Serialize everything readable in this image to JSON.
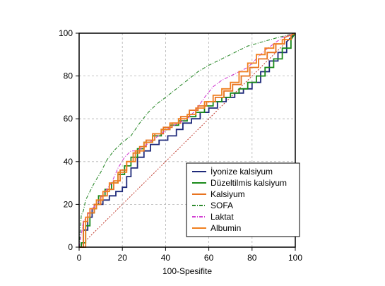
{
  "chart_data": {
    "type": "line",
    "title": "",
    "xlabel": "100-Spesifite",
    "ylabel": "",
    "xlim": [
      0,
      100
    ],
    "ylim": [
      0,
      100
    ],
    "x_ticks": [
      "0",
      "20",
      "40",
      "60",
      "80",
      "100"
    ],
    "y_ticks": [
      "0",
      "20",
      "40",
      "60",
      "80",
      "100"
    ],
    "grid": true,
    "legend_position": "bottom-right",
    "reference_line": {
      "x": [
        0,
        100
      ],
      "y": [
        0,
        100
      ],
      "color": "#c0392b"
    },
    "series": [
      {
        "name": "İyonize kalsiyum",
        "color": "#1f2a7a",
        "dash": "solid",
        "x": [
          0,
          2,
          2,
          4,
          4,
          6,
          6,
          8,
          8,
          11,
          11,
          14,
          14,
          17,
          17,
          20,
          20,
          22,
          22,
          24,
          24,
          27,
          27,
          30,
          30,
          33,
          33,
          37,
          37,
          41,
          41,
          45,
          45,
          48,
          48,
          52,
          52,
          56,
          56,
          60,
          60,
          64,
          64,
          68,
          68,
          72,
          72,
          76,
          76,
          80,
          80,
          84,
          84,
          88,
          88,
          92,
          92,
          96,
          96,
          100
        ],
        "y": [
          0,
          0,
          8,
          8,
          14,
          14,
          18,
          18,
          20,
          20,
          22,
          22,
          24,
          24,
          26,
          26,
          28,
          28,
          33,
          33,
          37,
          37,
          42,
          42,
          45,
          45,
          48,
          48,
          50,
          50,
          52,
          52,
          55,
          55,
          58,
          58,
          60,
          60,
          63,
          63,
          65,
          65,
          68,
          68,
          70,
          70,
          72,
          72,
          74,
          74,
          77,
          77,
          82,
          82,
          87,
          87,
          91,
          91,
          96,
          100
        ]
      },
      {
        "name": "Düzeltilmis kalsiyum",
        "color": "#1a8a1a",
        "dash": "solid",
        "x": [
          0,
          1,
          1,
          3,
          3,
          5,
          5,
          7,
          7,
          9,
          9,
          12,
          12,
          15,
          15,
          18,
          18,
          21,
          21,
          24,
          24,
          27,
          27,
          30,
          30,
          34,
          34,
          38,
          38,
          42,
          42,
          46,
          46,
          50,
          50,
          54,
          54,
          58,
          58,
          62,
          62,
          66,
          66,
          70,
          70,
          74,
          74,
          78,
          78,
          82,
          82,
          86,
          86,
          90,
          90,
          94,
          94,
          98,
          98,
          100
        ],
        "y": [
          0,
          0,
          2,
          2,
          10,
          10,
          16,
          16,
          20,
          20,
          24,
          24,
          27,
          27,
          30,
          30,
          34,
          34,
          38,
          38,
          42,
          42,
          46,
          46,
          49,
          49,
          52,
          52,
          55,
          55,
          57,
          57,
          59,
          59,
          61,
          61,
          63,
          63,
          66,
          66,
          68,
          68,
          70,
          70,
          72,
          72,
          74,
          74,
          77,
          77,
          80,
          80,
          84,
          84,
          88,
          88,
          93,
          93,
          97,
          100
        ]
      },
      {
        "name": "Kalsiyum",
        "color": "#e8731f",
        "dash": "solid",
        "x": [
          0,
          2,
          2,
          4,
          4,
          7,
          7,
          10,
          10,
          13,
          13,
          16,
          16,
          19,
          19,
          22,
          22,
          25,
          25,
          28,
          28,
          31,
          31,
          35,
          35,
          39,
          39,
          43,
          43,
          47,
          47,
          51,
          51,
          55,
          55,
          59,
          59,
          63,
          63,
          67,
          67,
          71,
          71,
          75,
          75,
          79,
          79,
          83,
          83,
          87,
          87,
          91,
          91,
          95,
          95,
          100
        ],
        "y": [
          0,
          0,
          12,
          12,
          16,
          16,
          20,
          20,
          24,
          24,
          27,
          27,
          31,
          31,
          36,
          36,
          40,
          40,
          44,
          44,
          47,
          47,
          50,
          50,
          53,
          53,
          56,
          56,
          58,
          58,
          61,
          61,
          64,
          64,
          66,
          66,
          68,
          68,
          70,
          70,
          73,
          73,
          76,
          76,
          80,
          80,
          84,
          84,
          88,
          88,
          91,
          91,
          95,
          95,
          98,
          100
        ]
      },
      {
        "name": "SOFA",
        "color": "#2e8b2e",
        "dash": "dashdot",
        "x": [
          0,
          1,
          2,
          3,
          5,
          7,
          10,
          13,
          16,
          20,
          24,
          28,
          32,
          36,
          40,
          45,
          50,
          55,
          60,
          66,
          72,
          78,
          85,
          92,
          100
        ],
        "y": [
          0,
          15,
          17,
          22,
          26,
          30,
          35,
          41,
          45,
          49,
          52,
          58,
          63,
          67,
          70,
          74,
          78,
          82,
          85,
          88,
          91,
          94,
          96,
          98,
          100
        ]
      },
      {
        "name": "Laktat",
        "color": "#d23fd2",
        "dash": "dashdot",
        "x": [
          0,
          2,
          4,
          6,
          9,
          12,
          15,
          18,
          21,
          24,
          27,
          30,
          34,
          38,
          42,
          46,
          50,
          54,
          58,
          62,
          66,
          70,
          74,
          78,
          82,
          86,
          90,
          94,
          100
        ],
        "y": [
          0,
          12,
          15,
          18,
          21,
          26,
          30,
          37,
          42,
          45,
          45,
          47,
          50,
          53,
          56,
          58,
          60,
          64,
          70,
          75,
          78,
          80,
          82,
          84,
          88,
          92,
          95,
          98,
          100
        ]
      },
      {
        "name": "Albumin",
        "color": "#f07f1f",
        "dash": "solid",
        "x": [
          0,
          3,
          3,
          5,
          5,
          8,
          8,
          11,
          11,
          14,
          14,
          18,
          18,
          22,
          22,
          26,
          26,
          30,
          30,
          34,
          34,
          38,
          38,
          42,
          42,
          46,
          46,
          50,
          50,
          54,
          54,
          58,
          58,
          62,
          62,
          66,
          66,
          70,
          70,
          74,
          74,
          78,
          78,
          82,
          82,
          86,
          86,
          90,
          90,
          94,
          94,
          98,
          98,
          100
        ],
        "y": [
          0,
          0,
          14,
          14,
          18,
          18,
          22,
          22,
          26,
          26,
          30,
          30,
          35,
          35,
          40,
          40,
          45,
          45,
          49,
          49,
          53,
          53,
          55,
          55,
          58,
          58,
          60,
          60,
          62,
          62,
          65,
          65,
          68,
          68,
          71,
          71,
          74,
          74,
          77,
          77,
          82,
          82,
          86,
          86,
          90,
          90,
          93,
          93,
          95,
          95,
          97,
          97,
          99,
          100
        ]
      }
    ]
  }
}
